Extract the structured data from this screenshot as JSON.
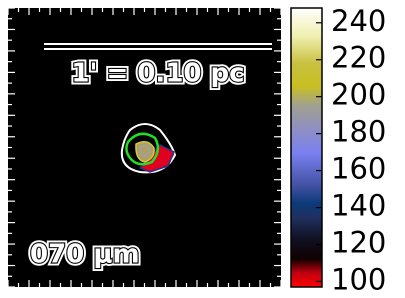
{
  "chart_data": {
    "type": "image",
    "annotations": [
      "1' = 0.10 pc",
      "070 μm"
    ],
    "colorbar": {
      "ylim": [
        97,
        248
      ],
      "yticks": [
        100,
        120,
        140,
        160,
        180,
        200,
        220,
        240
      ]
    }
  }
}
